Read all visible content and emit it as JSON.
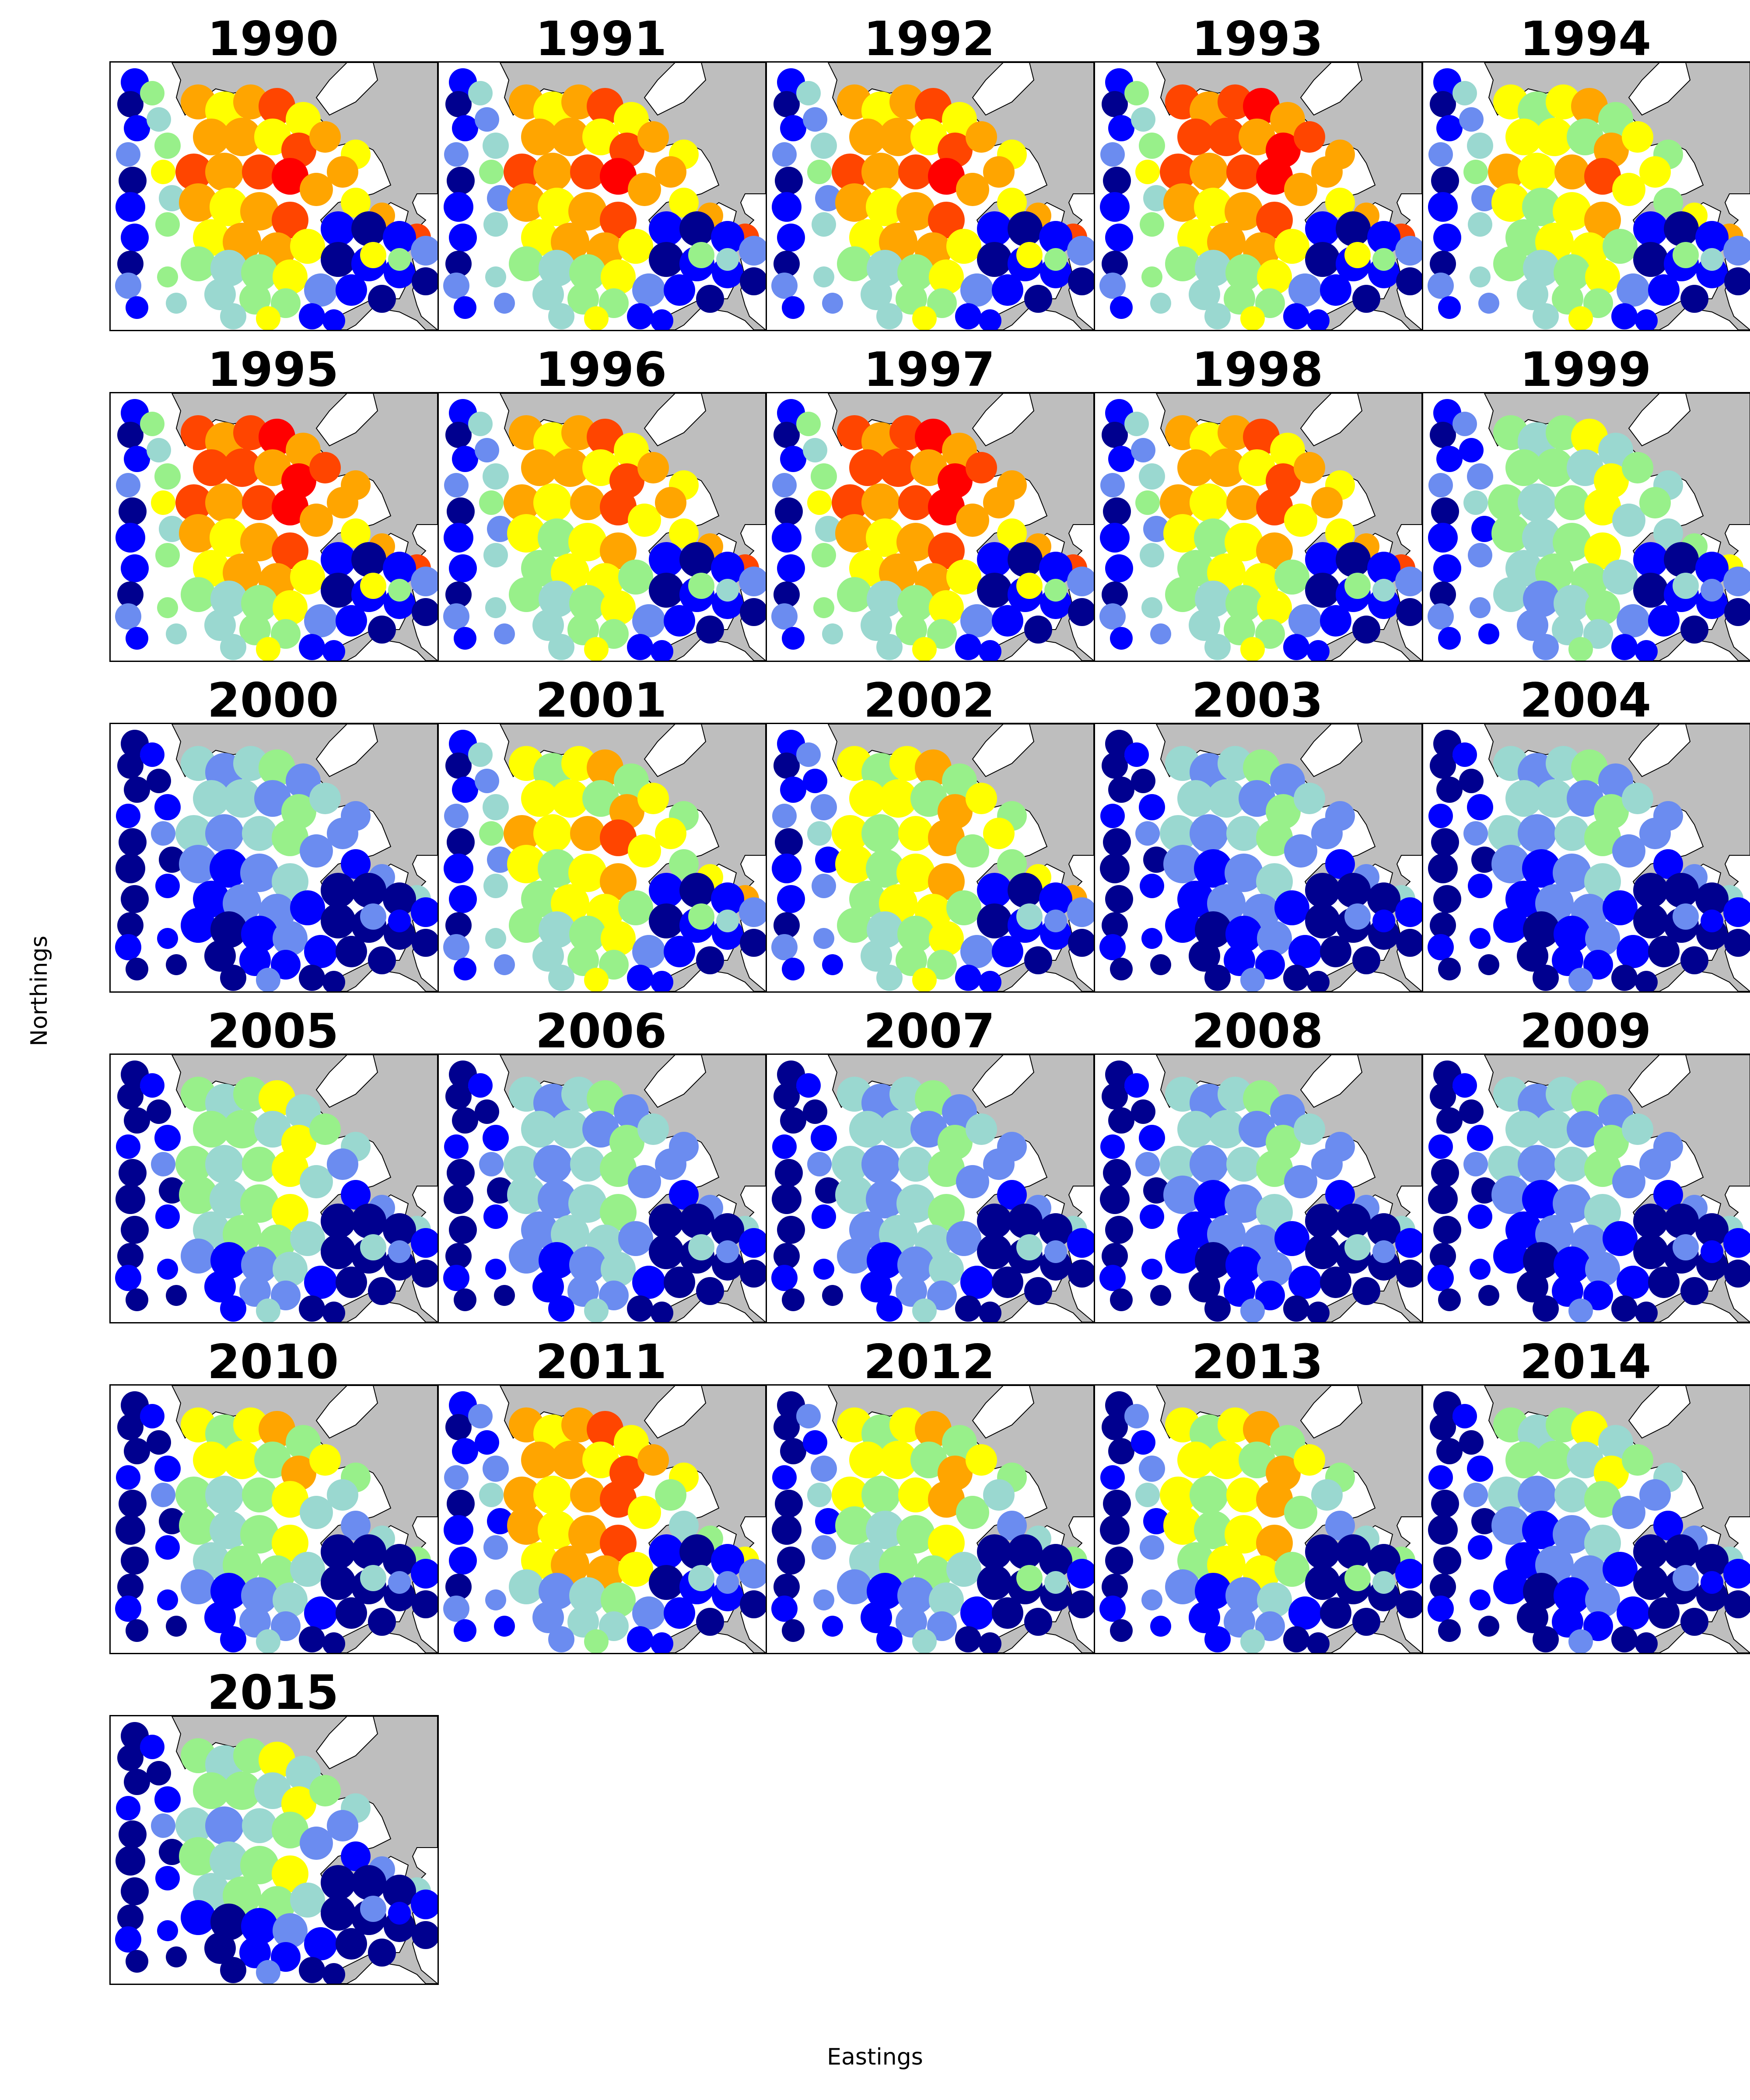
{
  "chart_data": {
    "type": "heatmap",
    "description_free": true,
    "xlabel": "Eastings",
    "ylabel": "Northings",
    "colormap": [
      "#00008f",
      "#0000ff",
      "#6b8cf0",
      "#9ad8d0",
      "#98f08a",
      "#ffff00",
      "#ffa500",
      "#ff4500",
      "#ff0000"
    ],
    "land_color": "#bebebe",
    "sea_color": "#ffffff",
    "regions": [
      "west_outer",
      "west_inner",
      "north_cluster",
      "central_north",
      "central",
      "east_north",
      "south_west",
      "south_east",
      "east_blob"
    ],
    "panels": [
      {
        "title": "1990",
        "levels": [
          1,
          4,
          6,
          7,
          6,
          6,
          4,
          1,
          5
        ]
      },
      {
        "title": "1991",
        "levels": [
          1,
          3,
          6,
          7,
          6,
          6,
          4,
          1,
          4
        ]
      },
      {
        "title": "1992",
        "levels": [
          1,
          3,
          6,
          7,
          6,
          6,
          4,
          1,
          5
        ]
      },
      {
        "title": "1993",
        "levels": [
          1,
          4,
          7,
          7,
          6,
          6,
          4,
          1,
          5
        ]
      },
      {
        "title": "1994",
        "levels": [
          1,
          3,
          5,
          6,
          5,
          5,
          4,
          1,
          4
        ]
      },
      {
        "title": "1995",
        "levels": [
          1,
          4,
          7,
          7,
          6,
          6,
          4,
          1,
          5
        ]
      },
      {
        "title": "1996",
        "levels": [
          1,
          3,
          6,
          6,
          5,
          6,
          4,
          1,
          4
        ]
      },
      {
        "title": "1997",
        "levels": [
          1,
          4,
          7,
          7,
          6,
          6,
          4,
          1,
          5
        ]
      },
      {
        "title": "1998",
        "levels": [
          1,
          3,
          6,
          6,
          5,
          6,
          4,
          1,
          4
        ]
      },
      {
        "title": "1999",
        "levels": [
          1,
          2,
          4,
          4,
          4,
          4,
          3,
          1,
          3
        ]
      },
      {
        "title": "2000",
        "levels": [
          0,
          1,
          3,
          3,
          2,
          2,
          1,
          0,
          2
        ]
      },
      {
        "title": "2001",
        "levels": [
          1,
          3,
          5,
          6,
          5,
          5,
          4,
          1,
          4
        ]
      },
      {
        "title": "2002",
        "levels": [
          1,
          2,
          5,
          5,
          5,
          5,
          4,
          1,
          3
        ]
      },
      {
        "title": "2003",
        "levels": [
          0,
          1,
          3,
          3,
          2,
          2,
          1,
          0,
          2
        ]
      },
      {
        "title": "2004",
        "levels": [
          0,
          1,
          3,
          3,
          2,
          2,
          1,
          0,
          2
        ]
      },
      {
        "title": "2005",
        "levels": [
          0,
          1,
          4,
          4,
          4,
          2,
          2,
          0,
          3
        ]
      },
      {
        "title": "2006",
        "levels": [
          0,
          1,
          3,
          3,
          3,
          2,
          2,
          0,
          3
        ]
      },
      {
        "title": "2007",
        "levels": [
          0,
          1,
          3,
          3,
          3,
          2,
          2,
          0,
          3
        ]
      },
      {
        "title": "2008",
        "levels": [
          0,
          1,
          3,
          3,
          2,
          2,
          1,
          0,
          3
        ]
      },
      {
        "title": "2009",
        "levels": [
          0,
          1,
          3,
          3,
          2,
          2,
          1,
          0,
          2
        ]
      },
      {
        "title": "2010",
        "levels": [
          0,
          1,
          5,
          4,
          4,
          3,
          2,
          0,
          3
        ]
      },
      {
        "title": "2011",
        "levels": [
          1,
          2,
          6,
          6,
          6,
          4,
          3,
          1,
          3
        ]
      },
      {
        "title": "2012",
        "levels": [
          0,
          2,
          5,
          5,
          4,
          3,
          2,
          0,
          4
        ]
      },
      {
        "title": "2013",
        "levels": [
          0,
          2,
          5,
          5,
          5,
          3,
          2,
          0,
          4
        ]
      },
      {
        "title": "2014",
        "levels": [
          0,
          1,
          4,
          3,
          2,
          2,
          1,
          0,
          2
        ]
      },
      {
        "title": "2015",
        "levels": [
          0,
          1,
          4,
          3,
          4,
          2,
          1,
          0,
          2
        ]
      }
    ]
  }
}
